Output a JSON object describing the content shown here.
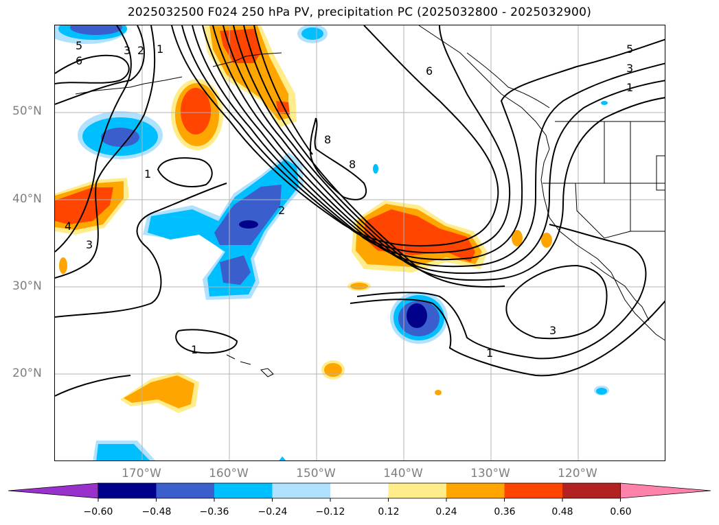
{
  "title": "2025032500 F024 250 hPa PV, precipitation PC (2025032800 - 2025032900)",
  "map": {
    "lat_ticks": [
      {
        "value": 50,
        "label": "50°N"
      },
      {
        "value": 40,
        "label": "40°N"
      },
      {
        "value": 30,
        "label": "30°N"
      },
      {
        "value": 20,
        "label": "20°N"
      }
    ],
    "lon_ticks": [
      {
        "value": -170,
        "label": "170°W"
      },
      {
        "value": -160,
        "label": "160°W"
      },
      {
        "value": -150,
        "label": "150°W"
      },
      {
        "value": -140,
        "label": "140°W"
      },
      {
        "value": -130,
        "label": "130°W"
      },
      {
        "value": -120,
        "label": "120°W"
      }
    ],
    "contour_labels": [
      "5",
      "3",
      "2",
      "1",
      "6",
      "8",
      "8",
      "1",
      "3",
      "4",
      "2",
      "1",
      "1",
      "3",
      "6",
      "5",
      "3",
      "1"
    ],
    "colors": {
      "neg_extreme": "#9932cc",
      "neg_060": "#00008b",
      "neg_048": "#3a5fcd",
      "neg_036": "#00bfff",
      "neg_024": "#b0e2ff",
      "neutral": "#ffffff",
      "pos_012": "#ffec8b",
      "pos_024": "#ffa500",
      "pos_036": "#ff4500",
      "pos_048": "#b22222",
      "pos_extreme": "#ff82ab",
      "contour": "#000000",
      "grid": "#b3b3b3",
      "tick_label": "#7f7f7f"
    }
  },
  "colorbar": {
    "tick_labels": [
      "−0.60",
      "−0.48",
      "−0.36",
      "−0.24",
      "−0.12",
      "0.12",
      "0.24",
      "0.36",
      "0.48",
      "0.60"
    ],
    "bins": [
      "#9932cc",
      "#00008b",
      "#3a5fcd",
      "#00bfff",
      "#b0e2ff",
      "#ffffff",
      "#ffec8b",
      "#ffa500",
      "#ff4500",
      "#b22222",
      "#ff82ab"
    ]
  }
}
